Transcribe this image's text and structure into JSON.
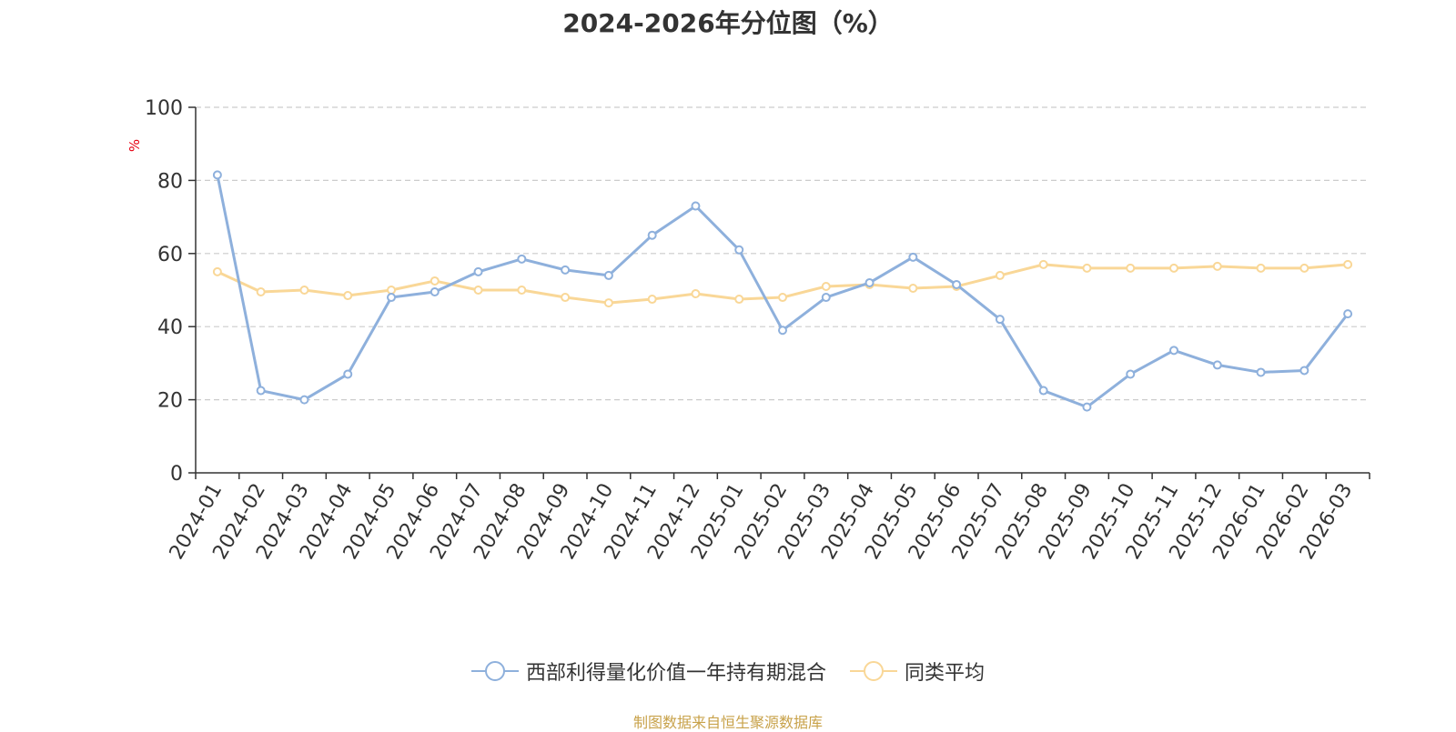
{
  "chart_data": {
    "type": "line",
    "title": "2024-2026年分位图（%）",
    "ylabel": "%",
    "ylim": [
      0,
      100
    ],
    "yticks": [
      0,
      20,
      40,
      60,
      80,
      100
    ],
    "grid": true,
    "legend_position": "bottom",
    "categories": [
      "2024-01",
      "2024-02",
      "2024-03",
      "2024-04",
      "2024-05",
      "2024-06",
      "2024-07",
      "2024-08",
      "2024-09",
      "2024-10",
      "2024-11",
      "2024-12",
      "2025-01",
      "2025-02",
      "2025-03",
      "2025-04",
      "2025-05",
      "2025-06",
      "2025-07",
      "2025-08",
      "2025-09",
      "2025-10",
      "2025-11",
      "2025-12",
      "2026-01",
      "2026-02",
      "2026-03"
    ],
    "series": [
      {
        "name": "西部利得量化价值一年持有期混合",
        "color": "#8eb0dc",
        "values": [
          81.5,
          22.5,
          20,
          27,
          48,
          49.5,
          55,
          58.5,
          55.5,
          54,
          65,
          73,
          61,
          39,
          48,
          52,
          59,
          51.5,
          42,
          22.5,
          18,
          27,
          33.5,
          29.5,
          27.5,
          28,
          43.5
        ]
      },
      {
        "name": "同类平均",
        "color": "#f9d797",
        "values": [
          55,
          49.5,
          50,
          48.5,
          50,
          52.5,
          50,
          50,
          48,
          46.5,
          47.5,
          49,
          47.5,
          48,
          51,
          51.5,
          50.5,
          51,
          54,
          57,
          56,
          56,
          56,
          56.5,
          56,
          56,
          57
        ]
      }
    ]
  },
  "source_text": "制图数据来自恒生聚源数据库"
}
